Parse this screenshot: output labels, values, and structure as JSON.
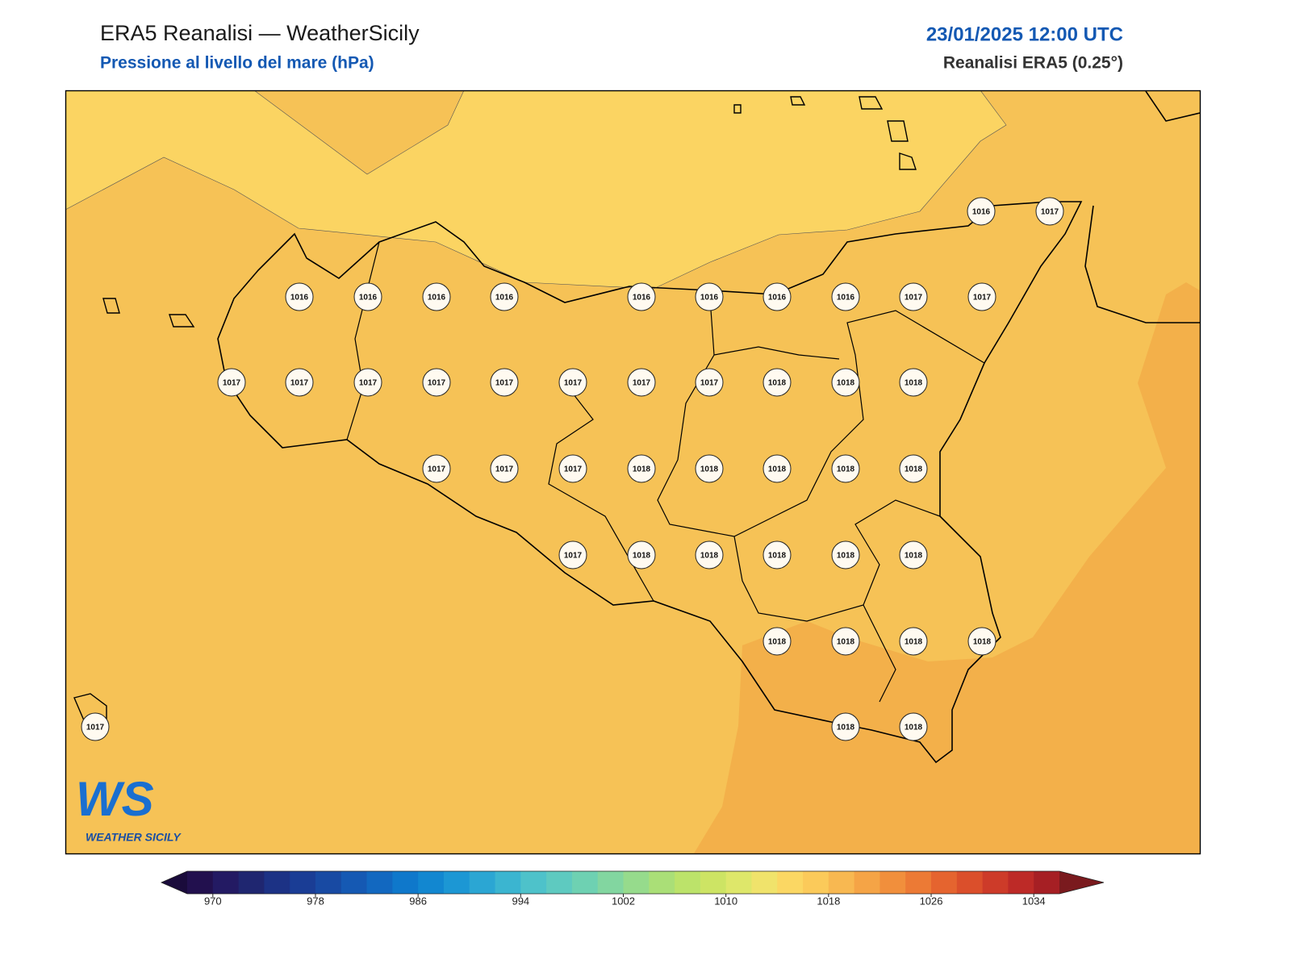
{
  "header": {
    "title": "ERA5 Reanalisi — WeatherSicily",
    "subtitle": "Pressione al livello del mare (hPa)",
    "datetime": "23/01/2025 12:00 UTC",
    "source": "Reanalisi ERA5 (0.25°)"
  },
  "map": {
    "labels": [
      1016,
      1017,
      1016,
      1016,
      1016,
      1016,
      1016,
      1016,
      1016,
      1016,
      1017,
      1017,
      1017,
      1017,
      1017,
      1017,
      1017,
      1017,
      1017,
      1017,
      1018,
      1018,
      1018,
      1017,
      1017,
      1017,
      1018,
      1018,
      1018,
      1018,
      1018,
      1017,
      1018,
      1018,
      1018,
      1018,
      1018,
      1018,
      1018,
      1018,
      1018,
      1017,
      1018,
      1018
    ],
    "fills": [
      "#f6c256",
      "#fbd462",
      "#f3b04a"
    ]
  },
  "colorbar": {
    "lim": [
      968,
      1036
    ],
    "ticks": [
      970,
      978,
      986,
      994,
      1002,
      1010,
      1018,
      1026,
      1034
    ],
    "colors": [
      "#22104e",
      "#231a63",
      "#1f2670",
      "#1c3285",
      "#1a3d95",
      "#184aa3",
      "#1559b3",
      "#1268c0",
      "#0f78cb",
      "#1287d0",
      "#1c97d4",
      "#2ba6d3",
      "#3bb5d0",
      "#4ec2ca",
      "#5ecac0",
      "#6ed1b2",
      "#82d6a0",
      "#96db8c",
      "#aadf77",
      "#bce36a",
      "#cde464",
      "#dee76a",
      "#f0e36b",
      "#fbd763",
      "#fbca5a",
      "#f8b851",
      "#f5a446",
      "#f18f3c",
      "#ec7a35",
      "#e5642f",
      "#db4f2b",
      "#cd3b29",
      "#bd2a27",
      "#a61f24"
    ],
    "under": "#1a0b3b",
    "over": "#7a1a1e"
  },
  "logo": {
    "mark": "WS",
    "text": "WEATHER SICILY"
  }
}
